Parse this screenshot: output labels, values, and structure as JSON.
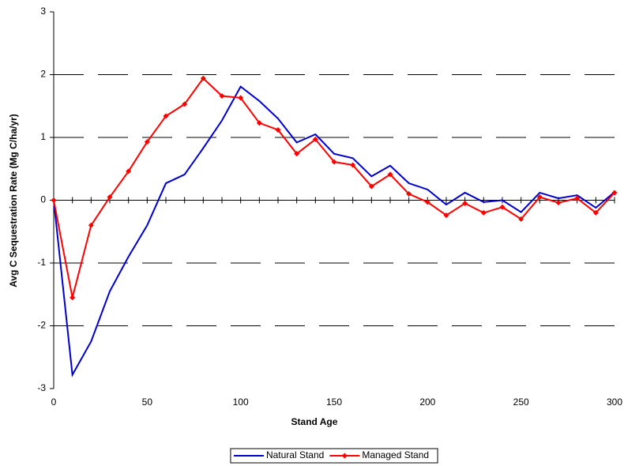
{
  "chart_data": {
    "type": "line",
    "x_label": "Stand Age",
    "y_label": "Avg C Sequestration Rate (Mg C/ha/yr)",
    "x": [
      0,
      10,
      20,
      30,
      40,
      50,
      60,
      70,
      80,
      90,
      100,
      110,
      120,
      130,
      140,
      150,
      160,
      170,
      180,
      190,
      200,
      210,
      220,
      230,
      240,
      250,
      260,
      270,
      280,
      290,
      300
    ],
    "series": [
      {
        "name": "Natural Stand",
        "color": "#0000cc",
        "marker": "none",
        "values": [
          0,
          -2.78,
          -2.25,
          -1.45,
          -0.9,
          -0.4,
          0.27,
          0.41,
          0.83,
          1.27,
          1.81,
          1.58,
          1.3,
          0.92,
          1.05,
          0.74,
          0.67,
          0.38,
          0.55,
          0.27,
          0.17,
          -0.07,
          0.12,
          -0.03,
          0,
          -0.19,
          0.12,
          0.03,
          0.08,
          -0.12,
          0.13
        ]
      },
      {
        "name": "Managed Stand",
        "color": "#ff0000",
        "marker": "diamond",
        "values": [
          0,
          -1.55,
          -0.4,
          0.05,
          0.46,
          0.93,
          1.34,
          1.53,
          1.94,
          1.66,
          1.63,
          1.23,
          1.12,
          0.74,
          0.97,
          0.61,
          0.56,
          0.22,
          0.41,
          0.1,
          -0.03,
          -0.24,
          -0.05,
          -0.2,
          -0.11,
          -0.3,
          0.05,
          -0.04,
          0.03,
          -0.2,
          0.12
        ]
      }
    ],
    "xlim": [
      0,
      300
    ],
    "xticks": [
      0,
      50,
      100,
      150,
      200,
      250,
      300
    ],
    "ylim": [
      -3,
      3
    ],
    "yticks": [
      -3,
      -2,
      -1,
      0,
      1,
      2,
      3
    ],
    "grid": true,
    "legend": "bottom"
  }
}
